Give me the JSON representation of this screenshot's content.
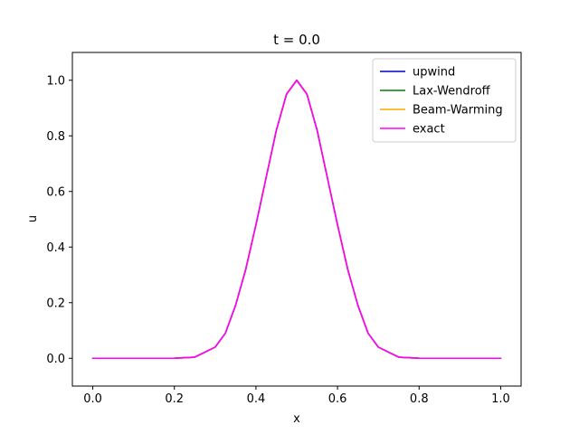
{
  "chart_data": {
    "type": "line",
    "title": "t = 0.0",
    "xlabel": "x",
    "ylabel": "u",
    "xlim": [
      -0.05,
      1.05
    ],
    "ylim": [
      -0.1,
      1.1
    ],
    "xticks": [
      0.0,
      0.2,
      0.4,
      0.6,
      0.8,
      1.0
    ],
    "xtick_labels": [
      "0.0",
      "0.2",
      "0.4",
      "0.6",
      "0.8",
      "1.0"
    ],
    "yticks": [
      0.0,
      0.2,
      0.4,
      0.6,
      0.8,
      1.0
    ],
    "ytick_labels": [
      "0.0",
      "0.2",
      "0.4",
      "0.6",
      "0.8",
      "1.0"
    ],
    "grid": false,
    "legend_position": "top-right",
    "x": [
      0.0,
      0.05,
      0.1,
      0.15,
      0.2,
      0.25,
      0.3,
      0.325,
      0.35,
      0.375,
      0.4,
      0.425,
      0.45,
      0.475,
      0.5,
      0.525,
      0.55,
      0.575,
      0.6,
      0.625,
      0.65,
      0.675,
      0.7,
      0.75,
      0.8,
      0.85,
      0.9,
      0.95,
      1.0
    ],
    "series": [
      {
        "name": "upwind",
        "color": "#0000cc",
        "values": [
          0.0,
          0.0,
          0.0,
          0.0,
          0.0003,
          0.004,
          0.04,
          0.09,
          0.19,
          0.32,
          0.48,
          0.65,
          0.82,
          0.95,
          1.0,
          0.95,
          0.82,
          0.65,
          0.48,
          0.32,
          0.19,
          0.09,
          0.04,
          0.004,
          0.0003,
          0.0,
          0.0,
          0.0,
          0.0
        ]
      },
      {
        "name": "Lax-Wendroff",
        "color": "#008000",
        "values": [
          0.0,
          0.0,
          0.0,
          0.0,
          0.0003,
          0.004,
          0.04,
          0.09,
          0.19,
          0.32,
          0.48,
          0.65,
          0.82,
          0.95,
          1.0,
          0.95,
          0.82,
          0.65,
          0.48,
          0.32,
          0.19,
          0.09,
          0.04,
          0.004,
          0.0003,
          0.0,
          0.0,
          0.0,
          0.0
        ]
      },
      {
        "name": "Beam-Warming",
        "color": "#ffa500",
        "values": [
          0.0,
          0.0,
          0.0,
          0.0,
          0.0003,
          0.004,
          0.04,
          0.09,
          0.19,
          0.32,
          0.48,
          0.65,
          0.82,
          0.95,
          1.0,
          0.95,
          0.82,
          0.65,
          0.48,
          0.32,
          0.19,
          0.09,
          0.04,
          0.004,
          0.0003,
          0.0,
          0.0,
          0.0,
          0.0
        ]
      },
      {
        "name": "exact",
        "color": "#ff00ff",
        "values": [
          0.0,
          0.0,
          0.0,
          0.0,
          0.0003,
          0.004,
          0.04,
          0.09,
          0.19,
          0.32,
          0.48,
          0.65,
          0.82,
          0.95,
          1.0,
          0.95,
          0.82,
          0.65,
          0.48,
          0.32,
          0.19,
          0.09,
          0.04,
          0.004,
          0.0003,
          0.0,
          0.0,
          0.0,
          0.0
        ]
      }
    ]
  }
}
